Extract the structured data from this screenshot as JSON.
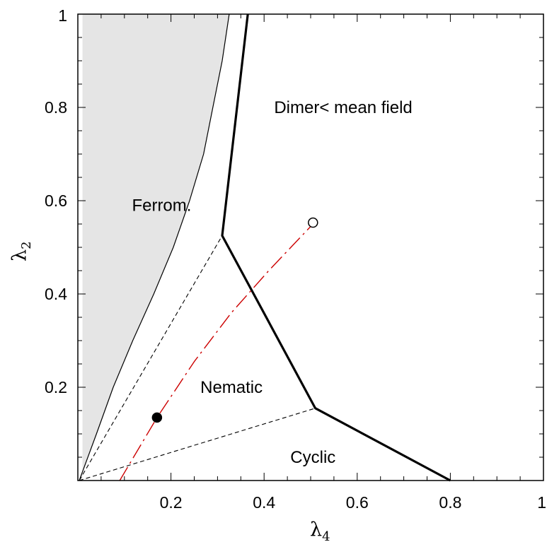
{
  "chart_data": {
    "type": "line",
    "title": "",
    "xlabel": {
      "symbol": "λ",
      "subscript": "4"
    },
    "ylabel": {
      "symbol": "λ",
      "subscript": "2"
    },
    "xlim": [
      0,
      1
    ],
    "ylim": [
      0,
      1
    ],
    "grid": false,
    "x_ticks": [
      {
        "value": 0.2,
        "label": "0.2"
      },
      {
        "value": 0.4,
        "label": "0.4"
      },
      {
        "value": 0.6,
        "label": "0.6"
      },
      {
        "value": 0.8,
        "label": "0.8"
      },
      {
        "value": 1.0,
        "label": "1"
      }
    ],
    "y_ticks": [
      {
        "value": 0.2,
        "label": "0.2"
      },
      {
        "value": 0.4,
        "label": "0.4"
      },
      {
        "value": 0.6,
        "label": "0.6"
      },
      {
        "value": 0.8,
        "label": "0.8"
      },
      {
        "value": 1.0,
        "label": "1"
      }
    ],
    "minor_tick_step": 0.05,
    "shaded_region": {
      "color": "#e5e5e5",
      "points": [
        [
          0.01,
          0
        ],
        [
          0.01,
          1
        ],
        [
          0.325,
          1
        ],
        [
          0.31,
          0.9
        ],
        [
          0.29,
          0.8
        ],
        [
          0.27,
          0.7
        ],
        [
          0.24,
          0.6
        ],
        [
          0.205,
          0.5
        ],
        [
          0.163,
          0.4
        ],
        [
          0.118,
          0.3
        ],
        [
          0.076,
          0.2
        ],
        [
          0.04,
          0.1
        ],
        [
          0.003,
          0
        ]
      ]
    },
    "series": [
      {
        "style": "thin-solid",
        "color": "#000000",
        "points": [
          [
            0.003,
            0
          ],
          [
            0.04,
            0.1
          ],
          [
            0.076,
            0.2
          ],
          [
            0.118,
            0.3
          ],
          [
            0.163,
            0.4
          ],
          [
            0.205,
            0.5
          ],
          [
            0.24,
            0.6
          ],
          [
            0.27,
            0.7
          ],
          [
            0.29,
            0.8
          ],
          [
            0.31,
            0.9
          ],
          [
            0.325,
            1.0
          ]
        ]
      },
      {
        "style": "thick-solid",
        "color": "#000000",
        "points": [
          [
            0.365,
            1.0
          ],
          [
            0.31,
            0.525
          ],
          [
            0.51,
            0.155
          ],
          [
            0.8,
            0
          ]
        ]
      },
      {
        "style": "dashed",
        "color": "#000000",
        "points": [
          [
            0.003,
            0
          ],
          [
            0.31,
            0.525
          ]
        ]
      },
      {
        "style": "dashed",
        "color": "#000000",
        "points": [
          [
            0.003,
            0
          ],
          [
            0.51,
            0.155
          ]
        ]
      },
      {
        "style": "dash-dot",
        "color": "#cc0000",
        "points": [
          [
            0.09,
            0
          ],
          [
            0.17,
            0.135
          ],
          [
            0.25,
            0.255
          ],
          [
            0.33,
            0.36
          ],
          [
            0.41,
            0.45
          ],
          [
            0.505,
            0.55
          ]
        ]
      }
    ],
    "markers": [
      {
        "x": 0.17,
        "y": 0.135,
        "fill": "filled"
      },
      {
        "x": 0.505,
        "y": 0.553,
        "fill": "open"
      }
    ],
    "annotations": [
      {
        "text": "Dimer< mean field",
        "x": 0.57,
        "y": 0.8
      },
      {
        "text": "Ferrom.",
        "x": 0.18,
        "y": 0.59
      },
      {
        "text": "Nematic",
        "x": 0.33,
        "y": 0.2
      },
      {
        "text": "Cyclic",
        "x": 0.505,
        "y": 0.05
      }
    ]
  }
}
